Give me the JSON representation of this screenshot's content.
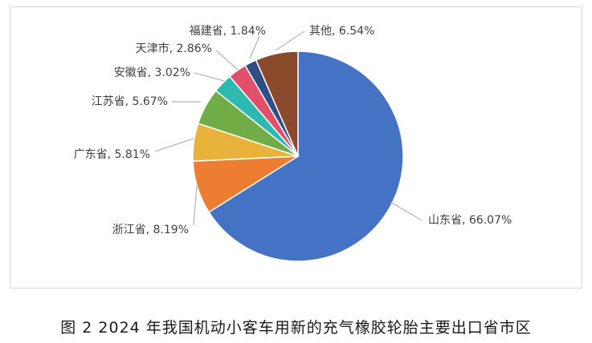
{
  "chart_data": {
    "type": "pie",
    "start_angle_deg": 0,
    "direction": "clockwise",
    "slices": [
      {
        "name": "山东省",
        "value": 66.07,
        "label": "山东省, 66.07%",
        "color": "#4472c4"
      },
      {
        "name": "浙江省",
        "value": 8.19,
        "label": "浙江省, 8.19%",
        "color": "#ed7d31"
      },
      {
        "name": "广东省",
        "value": 5.81,
        "label": "广东省, 5.81%",
        "color": "#e9b23a"
      },
      {
        "name": "江苏省",
        "value": 5.67,
        "label": "江苏省, 5.67%",
        "color": "#70ad47"
      },
      {
        "name": "安徽省",
        "value": 3.02,
        "label": "安徽省, 3.02%",
        "color": "#2db9b0"
      },
      {
        "name": "天津市",
        "value": 2.86,
        "label": "天津市, 2.86%",
        "color": "#e0506a"
      },
      {
        "name": "福建省",
        "value": 1.84,
        "label": "福建省, 1.84%",
        "color": "#2f4e86"
      },
      {
        "name": "其他",
        "value": 6.54,
        "label": "其他, 6.54%",
        "color": "#8b4a2b"
      }
    ]
  },
  "caption": "图 2  2024 年我国机动小客车用新的充气橡胶轮胎主要出口省市区"
}
